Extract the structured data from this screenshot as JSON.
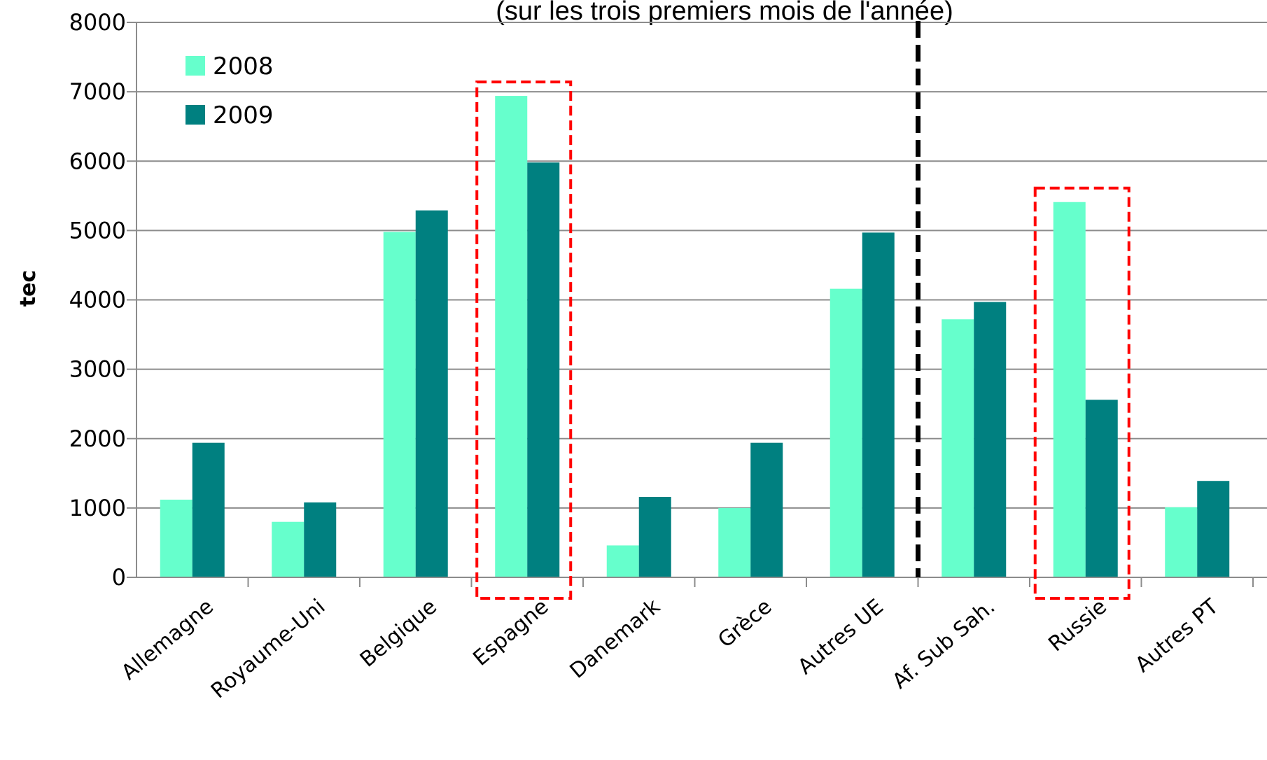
{
  "chart_data": {
    "type": "bar",
    "title": "(sur les trois premiers mois de l'année)",
    "ylabel": "tec",
    "xlabel": "",
    "ylim": [
      0,
      8000
    ],
    "y_ticks": [
      "0",
      "1000",
      "2000",
      "3000",
      "4000",
      "5000",
      "6000",
      "7000",
      "8000"
    ],
    "grid": true,
    "legend_position": "top-left",
    "categories": [
      "Allemagne",
      "Royaume-Uni",
      "Belgique",
      "Espagne",
      "Danemark",
      "Grèce",
      "Autres UE",
      "Af. Sub Sah.",
      "Russie",
      "Autres PT"
    ],
    "series": [
      {
        "name": "2008",
        "color": "#66ffcc",
        "values": [
          1120,
          800,
          4980,
          6940,
          460,
          1000,
          4160,
          3720,
          5410,
          1010
        ]
      },
      {
        "name": "2009",
        "color": "#008080",
        "values": [
          1940,
          1080,
          5290,
          5980,
          1160,
          1940,
          4970,
          3970,
          2560,
          1390
        ]
      }
    ],
    "highlighted_categories": [
      "Espagne",
      "Russie"
    ],
    "separator_after_category": "Autres UE"
  }
}
